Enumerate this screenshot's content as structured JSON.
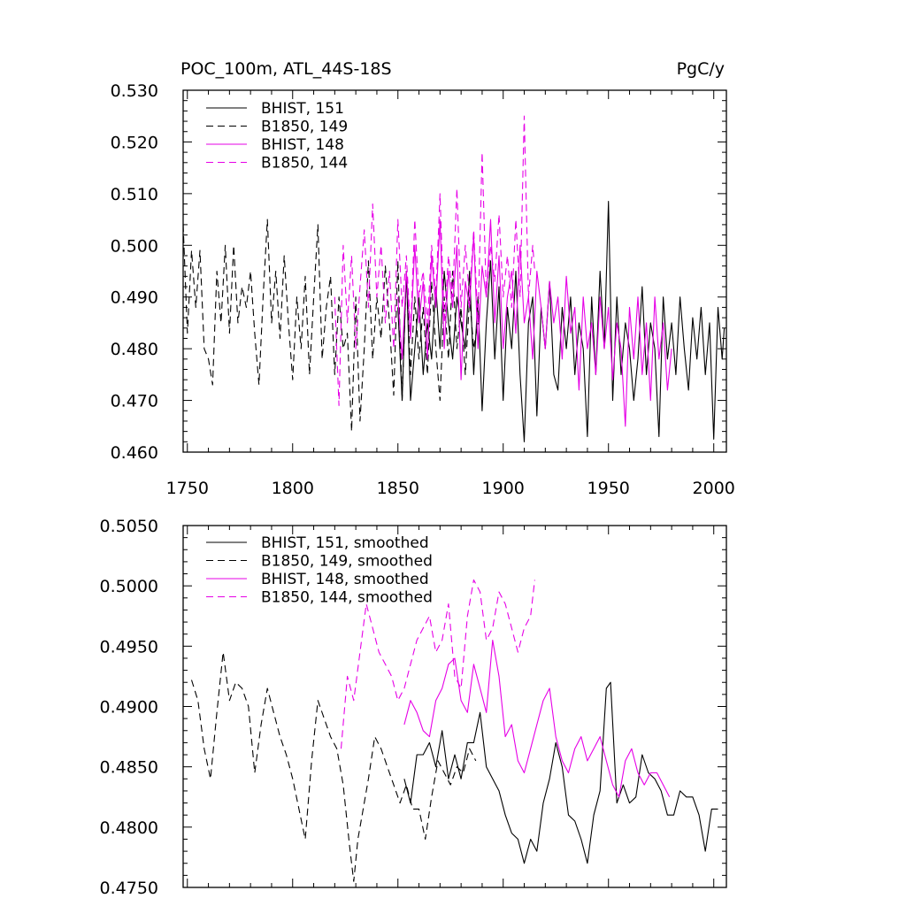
{
  "chart_data": [
    {
      "type": "line",
      "title_left": "POC_100m, ATL_44S-18S",
      "title_right": "PgC/y",
      "xlim": [
        1748,
        2006
      ],
      "ylim": [
        0.46,
        0.53
      ],
      "xticks": [
        1750,
        1800,
        1850,
        1900,
        1950,
        2000
      ],
      "xtick_labels": [
        "1750",
        "1800",
        "1850",
        "1900",
        "1950",
        "2000"
      ],
      "yticks": [
        0.46,
        0.47,
        0.48,
        0.49,
        0.5,
        0.51,
        0.52,
        0.53
      ],
      "ytick_labels": [
        "0.460",
        "0.470",
        "0.480",
        "0.490",
        "0.500",
        "0.510",
        "0.520",
        "0.530"
      ],
      "legend_position": "top-left",
      "series": [
        {
          "name": "BHIST, 151",
          "color": "#000000",
          "dash": "solid",
          "x": [
            1850,
            1852,
            1854,
            1856,
            1858,
            1860,
            1862,
            1864,
            1866,
            1868,
            1870,
            1872,
            1874,
            1876,
            1878,
            1880,
            1882,
            1884,
            1886,
            1888,
            1890,
            1892,
            1894,
            1896,
            1898,
            1900,
            1902,
            1904,
            1906,
            1908,
            1910,
            1912,
            1914,
            1916,
            1918,
            1920,
            1922,
            1924,
            1926,
            1928,
            1930,
            1932,
            1934,
            1936,
            1938,
            1940,
            1942,
            1944,
            1946,
            1948,
            1950,
            1952,
            1954,
            1956,
            1958,
            1960,
            1962,
            1964,
            1966,
            1968,
            1970,
            1972,
            1974,
            1976,
            1978,
            1980,
            1982,
            1984,
            1986,
            1988,
            1990,
            1992,
            1994,
            1996,
            1998,
            2000,
            2002,
            2004,
            2005
          ],
          "y": [
            0.488,
            0.47,
            0.495,
            0.47,
            0.48,
            0.49,
            0.475,
            0.485,
            0.478,
            0.492,
            0.48,
            0.495,
            0.485,
            0.478,
            0.49,
            0.485,
            0.48,
            0.495,
            0.475,
            0.49,
            0.468,
            0.485,
            0.497,
            0.478,
            0.492,
            0.47,
            0.488,
            0.48,
            0.495,
            0.475,
            0.462,
            0.485,
            0.49,
            0.467,
            0.488,
            0.48,
            0.493,
            0.475,
            0.472,
            0.488,
            0.48,
            0.49,
            0.475,
            0.485,
            0.48,
            0.463,
            0.49,
            0.475,
            0.495,
            0.48,
            0.5085,
            0.47,
            0.49,
            0.475,
            0.485,
            0.48,
            0.47,
            0.478,
            0.492,
            0.475,
            0.485,
            0.48,
            0.463,
            0.49,
            0.478,
            0.485,
            0.475,
            0.49,
            0.48,
            0.472,
            0.486,
            0.478,
            0.488,
            0.475,
            0.485,
            0.4625,
            0.488,
            0.478,
            0.484
          ]
        },
        {
          "name": "B1850, 149",
          "color": "#000000",
          "dash": "dashed",
          "x": [
            1748,
            1750,
            1752,
            1754,
            1756,
            1758,
            1760,
            1762,
            1764,
            1766,
            1768,
            1770,
            1772,
            1774,
            1776,
            1778,
            1780,
            1782,
            1784,
            1786,
            1788,
            1790,
            1792,
            1794,
            1796,
            1798,
            1800,
            1802,
            1804,
            1806,
            1808,
            1810,
            1812,
            1814,
            1816,
            1818,
            1820,
            1822,
            1824,
            1826,
            1828,
            1830,
            1832,
            1834,
            1836,
            1838,
            1840,
            1842,
            1844,
            1846,
            1848,
            1850,
            1852,
            1854,
            1856,
            1858,
            1860,
            1862,
            1864,
            1866,
            1868,
            1870,
            1872,
            1874,
            1876,
            1878,
            1880,
            1882,
            1884,
            1886,
            1888
          ],
          "y": [
            0.504,
            0.483,
            0.499,
            0.488,
            0.499,
            0.48,
            0.478,
            0.473,
            0.495,
            0.485,
            0.5,
            0.483,
            0.5,
            0.485,
            0.492,
            0.488,
            0.495,
            0.483,
            0.473,
            0.49,
            0.505,
            0.485,
            0.495,
            0.482,
            0.498,
            0.485,
            0.474,
            0.49,
            0.48,
            0.494,
            0.475,
            0.49,
            0.504,
            0.478,
            0.488,
            0.494,
            0.475,
            0.49,
            0.48,
            0.483,
            0.464,
            0.49,
            0.466,
            0.48,
            0.497,
            0.478,
            0.49,
            0.482,
            0.496,
            0.485,
            0.471,
            0.497,
            0.47,
            0.495,
            0.475,
            0.49,
            0.478,
            0.488,
            0.475,
            0.493,
            0.48,
            0.47,
            0.49,
            0.478,
            0.495,
            0.48,
            0.488,
            0.475,
            0.49,
            0.48,
            0.485
          ]
        },
        {
          "name": "BHIST, 148",
          "color": "#e600e6",
          "dash": "solid",
          "x": [
            1850,
            1852,
            1854,
            1856,
            1858,
            1860,
            1862,
            1864,
            1866,
            1868,
            1870,
            1872,
            1874,
            1876,
            1878,
            1880,
            1882,
            1884,
            1886,
            1888,
            1890,
            1892,
            1894,
            1896,
            1898,
            1900,
            1902,
            1904,
            1906,
            1908,
            1910,
            1912,
            1914,
            1916,
            1918,
            1920,
            1922,
            1924,
            1926,
            1928,
            1930,
            1932,
            1934,
            1936,
            1938,
            1940,
            1942,
            1944,
            1946,
            1948,
            1950,
            1952,
            1954,
            1956,
            1958,
            1960,
            1962,
            1964,
            1966,
            1968,
            1970,
            1972,
            1974,
            1976,
            1978,
            1980
          ],
          "y": [
            0.49,
            0.478,
            0.495,
            0.482,
            0.5,
            0.485,
            0.493,
            0.478,
            0.498,
            0.488,
            0.505,
            0.48,
            0.495,
            0.488,
            0.5,
            0.474,
            0.493,
            0.488,
            0.502,
            0.48,
            0.496,
            0.49,
            0.505,
            0.485,
            0.498,
            0.48,
            0.49,
            0.495,
            0.483,
            0.5,
            0.485,
            0.49,
            0.478,
            0.495,
            0.488,
            0.48,
            0.493,
            0.485,
            0.49,
            0.478,
            0.494,
            0.483,
            0.488,
            0.472,
            0.49,
            0.48,
            0.485,
            0.475,
            0.49,
            0.48,
            0.488,
            0.474,
            0.485,
            0.48,
            0.465,
            0.488,
            0.478,
            0.49,
            0.475,
            0.485,
            0.47,
            0.49,
            0.478,
            0.485,
            0.472,
            0.48
          ]
        },
        {
          "name": "B1850, 144",
          "color": "#e600e6",
          "dash": "dashed",
          "x": [
            1820,
            1822,
            1824,
            1826,
            1828,
            1830,
            1832,
            1834,
            1836,
            1838,
            1840,
            1842,
            1844,
            1846,
            1848,
            1850,
            1852,
            1854,
            1856,
            1858,
            1860,
            1862,
            1864,
            1866,
            1868,
            1870,
            1872,
            1874,
            1876,
            1878,
            1880,
            1882,
            1884,
            1886,
            1888,
            1890,
            1892,
            1894,
            1896,
            1898,
            1900,
            1902,
            1904,
            1906,
            1908,
            1910,
            1912,
            1914,
            1915
          ],
          "y": [
            0.49,
            0.469,
            0.5,
            0.485,
            0.498,
            0.48,
            0.492,
            0.503,
            0.488,
            0.508,
            0.49,
            0.5,
            0.485,
            0.495,
            0.48,
            0.505,
            0.488,
            0.498,
            0.483,
            0.505,
            0.49,
            0.495,
            0.485,
            0.5,
            0.49,
            0.51,
            0.485,
            0.498,
            0.49,
            0.511,
            0.488,
            0.5,
            0.49,
            0.503,
            0.485,
            0.518,
            0.49,
            0.5,
            0.493,
            0.506,
            0.49,
            0.498,
            0.488,
            0.505,
            0.49,
            0.525,
            0.49,
            0.5,
            0.495
          ]
        }
      ]
    },
    {
      "type": "line",
      "xlim": [
        1748,
        2006
      ],
      "ylim": [
        0.475,
        0.505
      ],
      "xticks": [
        1750,
        1800,
        1850,
        1900,
        1950,
        2000
      ],
      "yticks": [
        0.475,
        0.48,
        0.485,
        0.49,
        0.495,
        0.5,
        0.505
      ],
      "ytick_labels": [
        "0.4750",
        "0.4800",
        "0.4850",
        "0.4900",
        "0.4950",
        "0.5000",
        "0.5050"
      ],
      "legend_position": "top-left",
      "series": [
        {
          "name": "BHIST, 151, smoothed",
          "color": "#000000",
          "dash": "solid",
          "x": [
            1853,
            1856,
            1859,
            1862,
            1865,
            1868,
            1871,
            1874,
            1877,
            1880,
            1883,
            1886,
            1889,
            1892,
            1895,
            1898,
            1901,
            1904,
            1907,
            1910,
            1913,
            1916,
            1919,
            1922,
            1925,
            1928,
            1931,
            1934,
            1937,
            1940,
            1943,
            1946,
            1949,
            1951,
            1954,
            1957,
            1960,
            1963,
            1966,
            1969,
            1972,
            1975,
            1978,
            1981,
            1984,
            1987,
            1990,
            1993,
            1996,
            1999,
            2002
          ],
          "y": [
            0.484,
            0.482,
            0.486,
            0.486,
            0.487,
            0.485,
            0.488,
            0.484,
            0.486,
            0.484,
            0.487,
            0.487,
            0.4895,
            0.485,
            0.484,
            0.483,
            0.481,
            0.4795,
            0.479,
            0.477,
            0.479,
            0.478,
            0.482,
            0.484,
            0.487,
            0.485,
            0.481,
            0.4805,
            0.479,
            0.477,
            0.481,
            0.483,
            0.4915,
            0.492,
            0.482,
            0.4835,
            0.482,
            0.4825,
            0.486,
            0.4845,
            0.484,
            0.483,
            0.481,
            0.481,
            0.483,
            0.4825,
            0.4825,
            0.481,
            0.478,
            0.4815,
            0.4815
          ]
        },
        {
          "name": "B1850, 149, smoothed",
          "color": "#000000",
          "dash": "dashed",
          "x": [
            1752,
            1755,
            1758,
            1761,
            1764,
            1767,
            1770,
            1773,
            1776,
            1779,
            1782,
            1785,
            1788,
            1791,
            1794,
            1797,
            1800,
            1803,
            1806,
            1809,
            1812,
            1815,
            1818,
            1821,
            1824,
            1827,
            1829,
            1831,
            1833,
            1836,
            1839,
            1842,
            1845,
            1848,
            1851,
            1854,
            1857,
            1860,
            1863,
            1866,
            1869,
            1872,
            1875,
            1878,
            1881,
            1884,
            1887
          ],
          "y": [
            0.4922,
            0.4905,
            0.4865,
            0.484,
            0.4895,
            0.4945,
            0.4905,
            0.492,
            0.4915,
            0.49,
            0.4845,
            0.4885,
            0.4915,
            0.4895,
            0.4875,
            0.486,
            0.484,
            0.4815,
            0.479,
            0.4855,
            0.4905,
            0.489,
            0.4875,
            0.4865,
            0.4835,
            0.4785,
            0.4755,
            0.479,
            0.481,
            0.484,
            0.4875,
            0.4865,
            0.485,
            0.4835,
            0.482,
            0.4835,
            0.4815,
            0.4815,
            0.479,
            0.4825,
            0.4855,
            0.4845,
            0.4835,
            0.485,
            0.4845,
            0.4865,
            0.4855
          ]
        },
        {
          "name": "BHIST, 148, smoothed",
          "color": "#e600e6",
          "dash": "solid",
          "x": [
            1853,
            1856,
            1859,
            1862,
            1865,
            1868,
            1871,
            1874,
            1877,
            1880,
            1883,
            1886,
            1889,
            1892,
            1895,
            1898,
            1901,
            1904,
            1907,
            1910,
            1913,
            1916,
            1919,
            1922,
            1925,
            1928,
            1931,
            1934,
            1937,
            1940,
            1943,
            1946,
            1949,
            1952,
            1955,
            1958,
            1961,
            1964,
            1967,
            1970,
            1973,
            1976,
            1979
          ],
          "y": [
            0.4885,
            0.4905,
            0.4895,
            0.488,
            0.4875,
            0.4905,
            0.4915,
            0.4935,
            0.494,
            0.4905,
            0.4895,
            0.4935,
            0.4915,
            0.4895,
            0.4955,
            0.4925,
            0.4875,
            0.4885,
            0.4855,
            0.4845,
            0.4865,
            0.4885,
            0.4905,
            0.4915,
            0.4875,
            0.4855,
            0.4845,
            0.4865,
            0.4875,
            0.4855,
            0.4865,
            0.4875,
            0.4855,
            0.4835,
            0.4825,
            0.4855,
            0.4865,
            0.4845,
            0.4835,
            0.4845,
            0.4845,
            0.4835,
            0.4825
          ]
        },
        {
          "name": "B1850, 144, smoothed",
          "color": "#e600e6",
          "dash": "dashed",
          "x": [
            1823,
            1826,
            1829,
            1832,
            1835,
            1838,
            1841,
            1844,
            1847,
            1850,
            1853,
            1856,
            1859,
            1862,
            1865,
            1868,
            1871,
            1874,
            1877,
            1880,
            1883,
            1886,
            1889,
            1892,
            1895,
            1898,
            1901,
            1904,
            1907,
            1910,
            1913,
            1915
          ],
          "y": [
            0.4865,
            0.4925,
            0.4905,
            0.4945,
            0.4985,
            0.4965,
            0.4945,
            0.4935,
            0.4925,
            0.4905,
            0.4915,
            0.4935,
            0.4955,
            0.4965,
            0.4975,
            0.4945,
            0.4955,
            0.4985,
            0.4925,
            0.4915,
            0.4975,
            0.5005,
            0.4995,
            0.4955,
            0.4965,
            0.4995,
            0.4985,
            0.4965,
            0.4945,
            0.4965,
            0.4975,
            0.5005
          ]
        }
      ]
    }
  ]
}
